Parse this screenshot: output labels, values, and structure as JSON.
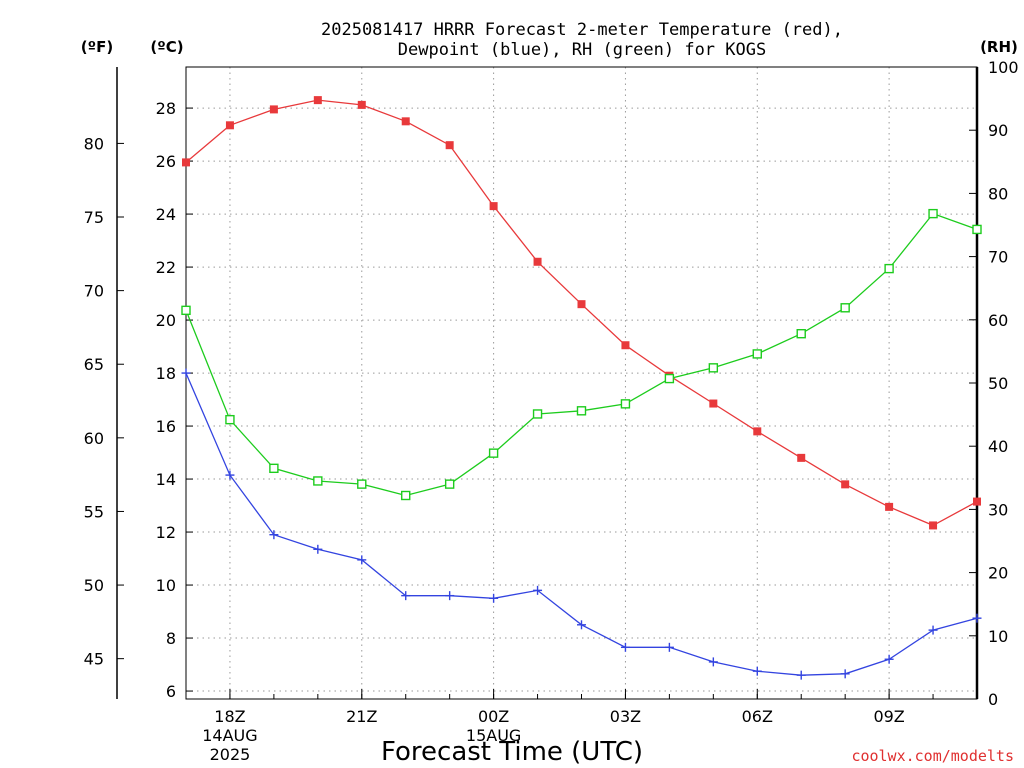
{
  "chart_data": {
    "type": "line",
    "title_line1": "2025081417 HRRR Forecast 2-meter Temperature (red),",
    "title_line2": "Dewpoint (blue), RH (green) for KOGS",
    "xlabel": "Forecast Time (UTC)",
    "left_outer_unit": "(ºF)",
    "left_inner_unit": "(ºC)",
    "right_unit": "(RH)",
    "watermark": "coolwx.com/modelts",
    "x_hours": [
      17,
      18,
      19,
      20,
      21,
      22,
      23,
      24,
      25,
      26,
      27,
      28,
      29,
      30,
      31,
      32,
      33,
      34,
      35
    ],
    "x_ticks": [
      {
        "hour": 18,
        "label": "18Z",
        "date": "14AUG",
        "year": "2025"
      },
      {
        "hour": 21,
        "label": "21Z",
        "date": "",
        "year": ""
      },
      {
        "hour": 24,
        "label": "00Z",
        "date": "15AUG",
        "year": ""
      },
      {
        "hour": 27,
        "label": "03Z",
        "date": "",
        "year": ""
      },
      {
        "hour": 30,
        "label": "06Z",
        "date": "",
        "year": ""
      },
      {
        "hour": 33,
        "label": "09Z",
        "date": "",
        "year": ""
      }
    ],
    "celsius_axis": {
      "min": 5.7,
      "max": 29.55,
      "ticks": [
        6,
        8,
        10,
        12,
        14,
        16,
        18,
        20,
        22,
        24,
        26,
        28
      ]
    },
    "fahrenheit_ticks": [
      45,
      50,
      55,
      60,
      65,
      70,
      75,
      80
    ],
    "rh_axis": {
      "min": 0,
      "max": 100,
      "ticks": [
        0,
        10,
        20,
        30,
        40,
        50,
        60,
        70,
        80,
        90,
        100
      ]
    },
    "grid": true,
    "series": [
      {
        "name": "Temperature",
        "axis": "celsius",
        "color": "#e8393b",
        "marker": "filled-square",
        "values": [
          25.95,
          27.35,
          27.95,
          28.3,
          28.12,
          27.5,
          26.6,
          24.3,
          22.2,
          20.6,
          19.05,
          17.9,
          16.85,
          15.8,
          14.8,
          13.8,
          12.95,
          12.25,
          13.15
        ]
      },
      {
        "name": "Dewpoint",
        "axis": "celsius",
        "color": "#3344e0",
        "marker": "plus",
        "values": [
          18.0,
          14.15,
          11.9,
          11.35,
          10.95,
          9.6,
          9.6,
          9.5,
          9.8,
          8.5,
          7.65,
          7.65,
          7.1,
          6.75,
          6.6,
          6.65,
          7.2,
          8.3,
          8.75
        ]
      },
      {
        "name": "RH",
        "axis": "rh",
        "color": "#1dcc1d",
        "marker": "open-square",
        "values": [
          61.5,
          44.2,
          36.5,
          34.5,
          34.0,
          32.2,
          34.0,
          38.9,
          45.1,
          45.6,
          46.7,
          50.7,
          52.4,
          54.6,
          57.8,
          61.9,
          68.1,
          76.8,
          74.3
        ]
      }
    ]
  }
}
